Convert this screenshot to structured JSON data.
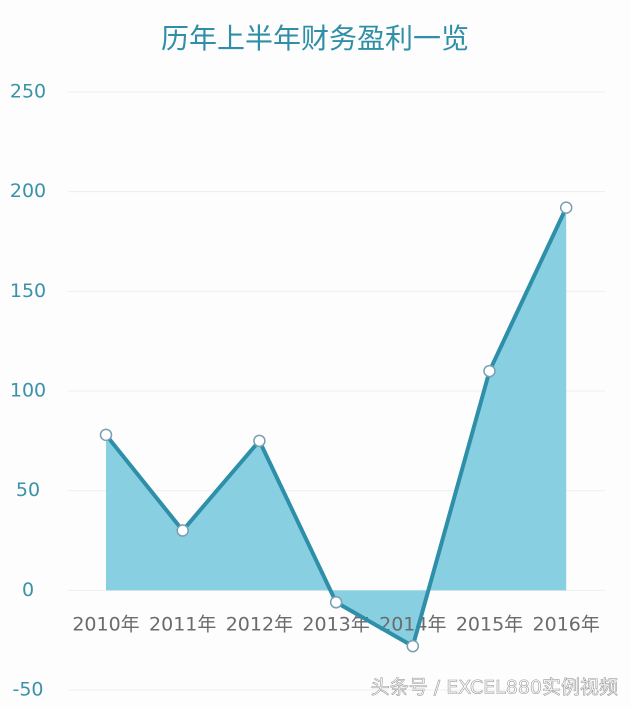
{
  "chart_data": {
    "type": "area_line",
    "title": "历年上半年财务盈利一览",
    "categories": [
      "2010年",
      "2011年",
      "2012年",
      "2013年",
      "2014年",
      "2015年",
      "2016年"
    ],
    "values": [
      78,
      30,
      75,
      -6,
      -28,
      110,
      192
    ],
    "color": "#2e8fa8",
    "fill_color": "#88cfe2",
    "ylim": [
      -50,
      250
    ],
    "yticks": [
      -50,
      0,
      50,
      100,
      150,
      200,
      250
    ],
    "grid": true,
    "watermark": "头条号 / EXCEL880实例视频"
  }
}
